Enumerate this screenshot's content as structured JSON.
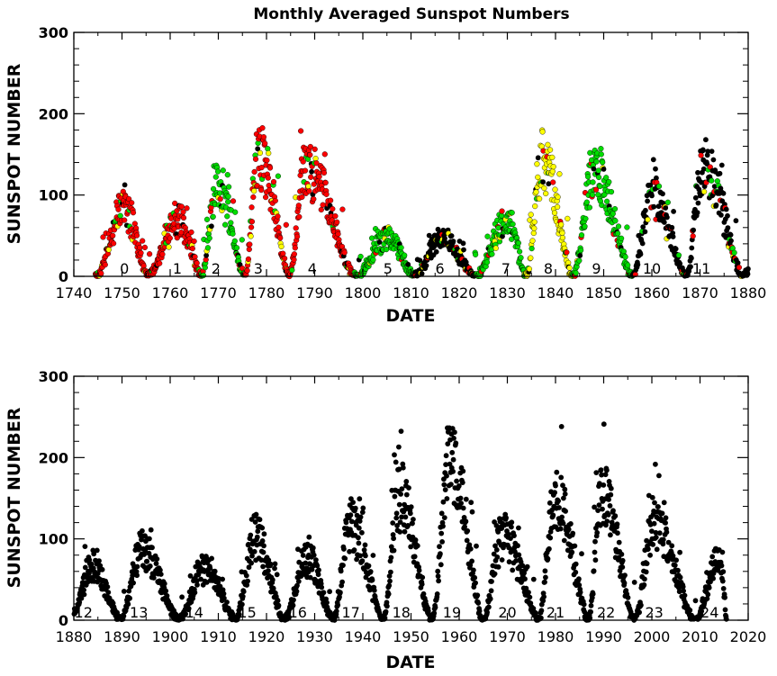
{
  "chart_data": [
    {
      "type": "scatter",
      "title": "Monthly Averaged Sunspot Numbers",
      "xlabel": "DATE",
      "ylabel": "SUNSPOT NUMBER",
      "xlim": [
        1740,
        1880
      ],
      "ylim": [
        0,
        300
      ],
      "xticks": [
        "1740",
        "1750",
        "1760",
        "1770",
        "1780",
        "1790",
        "1800",
        "1810",
        "1820",
        "1830",
        "1840",
        "1850",
        "1860",
        "1870",
        "1880"
      ],
      "yticks": [
        "0",
        "100",
        "200",
        "300"
      ],
      "grid": false,
      "legend": "none",
      "colors": {
        "black": "#000000",
        "red": "#ff0000",
        "green": "#00dd00",
        "yellow": "#ffff00"
      },
      "cycle_labels": [
        {
          "label": "0",
          "x": 1750.5
        },
        {
          "label": "1",
          "x": 1761.5
        },
        {
          "label": "2",
          "x": 1769.5
        },
        {
          "label": "3",
          "x": 1778.3
        },
        {
          "label": "4",
          "x": 1789.5
        },
        {
          "label": "5",
          "x": 1805.2
        },
        {
          "label": "6",
          "x": 1816.0
        },
        {
          "label": "7",
          "x": 1829.7
        },
        {
          "label": "8",
          "x": 1838.5
        },
        {
          "label": "9",
          "x": 1848.5
        },
        {
          "label": "10",
          "x": 1860.0
        },
        {
          "label": "11",
          "x": 1870.3
        }
      ],
      "cycles": [
        {
          "start": 1744.5,
          "peak_year": 1750.4,
          "peak": 85,
          "end": 1755.3,
          "color": "red"
        },
        {
          "start": 1755.3,
          "peak_year": 1761.5,
          "peak": 70,
          "end": 1766.5,
          "color": "red"
        },
        {
          "start": 1766.5,
          "peak_year": 1769.7,
          "peak": 110,
          "end": 1775.5,
          "color": "green"
        },
        {
          "start": 1775.5,
          "peak_year": 1778.4,
          "peak": 150,
          "end": 1784.7,
          "color": "red"
        },
        {
          "start": 1784.7,
          "peak_year": 1788.1,
          "peak": 135,
          "end": 1798.3,
          "color": "red"
        },
        {
          "start": 1798.3,
          "peak_year": 1805.2,
          "peak": 48,
          "end": 1810.6,
          "color": "green"
        },
        {
          "start": 1810.6,
          "peak_year": 1816.4,
          "peak": 48,
          "end": 1823.3,
          "color": "black"
        },
        {
          "start": 1823.3,
          "peak_year": 1829.9,
          "peak": 72,
          "end": 1833.9,
          "color": "green"
        },
        {
          "start": 1833.9,
          "peak_year": 1837.2,
          "peak": 145,
          "end": 1843.5,
          "color": "yellow"
        },
        {
          "start": 1843.5,
          "peak_year": 1848.1,
          "peak": 130,
          "end": 1856.0,
          "color": "green"
        },
        {
          "start": 1856.0,
          "peak_year": 1860.1,
          "peak": 98,
          "end": 1867.2,
          "color": "black"
        },
        {
          "start": 1867.2,
          "peak_year": 1870.6,
          "peak": 140,
          "end": 1878.9,
          "color": "black"
        },
        {
          "start": 1878.9,
          "peak_year": 1883.9,
          "peak": 65,
          "end": 1880.0,
          "color": "black"
        }
      ]
    },
    {
      "type": "scatter",
      "title": "",
      "xlabel": "DATE",
      "ylabel": "SUNSPOT NUMBER",
      "xlim": [
        1880,
        2020
      ],
      "ylim": [
        0,
        300
      ],
      "xticks": [
        "1880",
        "1890",
        "1900",
        "1910",
        "1920",
        "1930",
        "1940",
        "1950",
        "1960",
        "1970",
        "1980",
        "1990",
        "2000",
        "2010",
        "2020"
      ],
      "yticks": [
        "0",
        "100",
        "200",
        "300"
      ],
      "grid": false,
      "legend": "none",
      "colors": {
        "black": "#000000"
      },
      "cycle_labels": [
        {
          "label": "12",
          "x": 1882.0
        },
        {
          "label": "13",
          "x": 1893.5
        },
        {
          "label": "14",
          "x": 1905.0
        },
        {
          "label": "15",
          "x": 1916.0
        },
        {
          "label": "16",
          "x": 1926.5
        },
        {
          "label": "17",
          "x": 1937.5
        },
        {
          "label": "18",
          "x": 1948.0
        },
        {
          "label": "19",
          "x": 1958.5
        },
        {
          "label": "20",
          "x": 1970.0
        },
        {
          "label": "21",
          "x": 1980.0
        },
        {
          "label": "22",
          "x": 1990.5
        },
        {
          "label": "23",
          "x": 2000.5
        },
        {
          "label": "24",
          "x": 2012.0
        }
      ],
      "cycles": [
        {
          "start": 1878.9,
          "peak_year": 1883.9,
          "peak": 65,
          "end": 1889.6,
          "color": "black"
        },
        {
          "start": 1889.6,
          "peak_year": 1894.1,
          "peak": 85,
          "end": 1901.7,
          "color": "black"
        },
        {
          "start": 1901.7,
          "peak_year": 1907.0,
          "peak": 64,
          "end": 1913.6,
          "color": "black"
        },
        {
          "start": 1913.6,
          "peak_year": 1917.6,
          "peak": 105,
          "end": 1923.6,
          "color": "black"
        },
        {
          "start": 1923.6,
          "peak_year": 1928.4,
          "peak": 78,
          "end": 1933.8,
          "color": "black"
        },
        {
          "start": 1933.8,
          "peak_year": 1937.4,
          "peak": 119,
          "end": 1944.2,
          "color": "black"
        },
        {
          "start": 1944.2,
          "peak_year": 1947.5,
          "peak": 151,
          "end": 1954.3,
          "color": "black"
        },
        {
          "start": 1954.3,
          "peak_year": 1958.2,
          "peak": 201,
          "end": 1964.9,
          "color": "black"
        },
        {
          "start": 1964.9,
          "peak_year": 1968.9,
          "peak": 106,
          "end": 1976.5,
          "color": "black"
        },
        {
          "start": 1976.5,
          "peak_year": 1979.9,
          "peak": 155,
          "end": 1986.8,
          "color": "black"
        },
        {
          "start": 1986.8,
          "peak_year": 1989.6,
          "peak": 158,
          "end": 1996.4,
          "color": "black"
        },
        {
          "start": 1996.4,
          "peak_year": 2000.3,
          "peak": 120,
          "end": 2008.9,
          "color": "black"
        },
        {
          "start": 2008.9,
          "peak_year": 2014.3,
          "peak": 82,
          "end": 2015.5,
          "color": "black"
        }
      ]
    }
  ]
}
